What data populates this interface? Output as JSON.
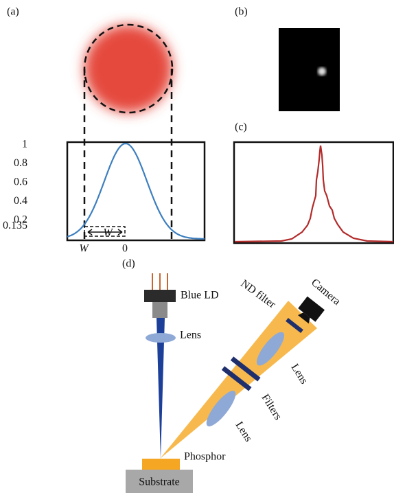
{
  "panels": {
    "a": {
      "label": "(a)",
      "yticks": [
        1,
        0.8,
        0.6,
        0.4,
        0.2,
        0.135
      ],
      "ylim": [
        0,
        1
      ],
      "xlabels": [
        "W",
        "W",
        "0"
      ]
    },
    "b": {
      "label": "(b)"
    },
    "c": {
      "label": "(c)"
    },
    "d": {
      "label": "(d)",
      "labels": {
        "blue_ld": "Blue LD",
        "lens_1": "Lens",
        "nd_filter": "ND filter",
        "camera": "Camera",
        "lens_2": "Lens",
        "filters": "Filters",
        "lens_3": "Lens",
        "phosphor": "Phosphor",
        "substrate": "Substrate"
      }
    }
  }
}
